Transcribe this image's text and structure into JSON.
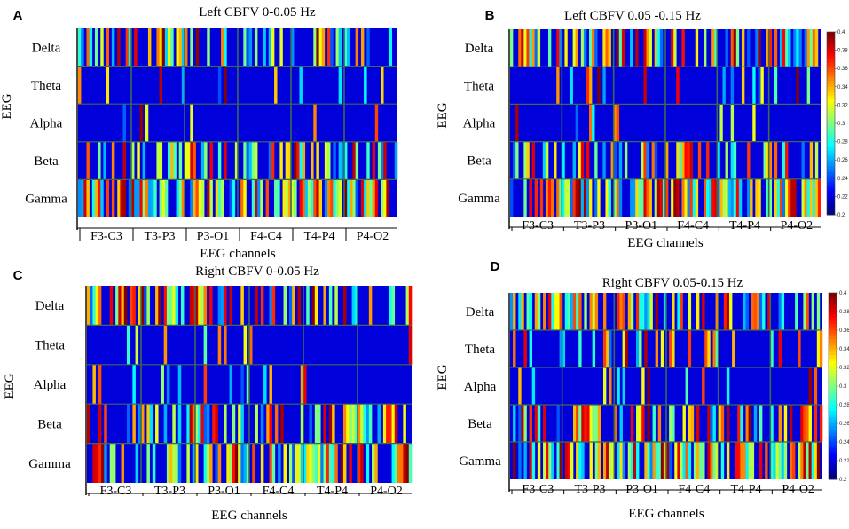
{
  "colors": {
    "colormap": "jet",
    "separator": "#3d6b4f",
    "axis": "#000000"
  },
  "chart_data": [
    {
      "type": "heatmap",
      "panel": "A",
      "title": "Left CBFV 0-0.05 Hz",
      "ylabel": "EEG",
      "xlabel": "EEG channels",
      "rows": [
        "Delta",
        "Theta",
        "Alpha",
        "Beta",
        "Gamma"
      ],
      "channel_groups": [
        "F3-C3",
        "T3-P3",
        "P3-O1",
        "F4-C4",
        "T4-P4",
        "P4-O2"
      ],
      "columns_per_group": 19,
      "seed": 11,
      "row_density": [
        0.45,
        0.12,
        0.08,
        0.45,
        0.7
      ],
      "colorbar": false
    },
    {
      "type": "heatmap",
      "panel": "B",
      "title": "Left  CBFV 0.05 -0.15 Hz",
      "ylabel": "EEG",
      "xlabel": "EEG channels",
      "rows": [
        "Delta",
        "Theta",
        "Alpha",
        "Beta",
        "Gamma"
      ],
      "channel_groups": [
        "F3-C3",
        "T3-P3",
        "P3-O1",
        "F4-C4",
        "T4-P4",
        "P4-O2"
      ],
      "columns_per_group": 19,
      "seed": 23,
      "row_density": [
        0.45,
        0.12,
        0.08,
        0.45,
        0.7
      ],
      "colorbar": true,
      "colorbar_ticks": [
        "0.4",
        "0.38",
        "0.36",
        "0.34",
        "0.32",
        "0.3",
        "0.28",
        "0.26",
        "0.24",
        "0.22",
        "0.2"
      ]
    },
    {
      "type": "heatmap",
      "panel": "C",
      "title": "Right CBFV 0-0.05 Hz",
      "ylabel": "EEG",
      "xlabel": "EEG channels",
      "rows": [
        "Delta",
        "Theta",
        "Alpha",
        "Beta",
        "Gamma"
      ],
      "channel_groups": [
        "F3-C3",
        "T3-P3",
        "P3-O1",
        "F4-C4",
        "T4-P4",
        "P4-O2"
      ],
      "columns_per_group": 19,
      "seed": 37,
      "row_density": [
        0.4,
        0.12,
        0.08,
        0.5,
        0.65
      ],
      "colorbar": false
    },
    {
      "type": "heatmap",
      "panel": "D",
      "title": "Right CBFV 0.05-0.15 Hz",
      "ylabel": "EEG",
      "xlabel": "EEG channels",
      "rows": [
        "Delta",
        "Theta",
        "Alpha",
        "Beta",
        "Gamma"
      ],
      "channel_groups": [
        "F3-C3",
        "T3-P3",
        "P3-O1",
        "F4-C4",
        "T4-P4",
        "P4-O2"
      ],
      "columns_per_group": 19,
      "seed": 53,
      "row_density": [
        0.5,
        0.25,
        0.12,
        0.5,
        0.65
      ],
      "colorbar": true,
      "colorbar_ticks": [
        "0.4",
        "0.38",
        "0.36",
        "0.34",
        "0.32",
        "0.3",
        "0.28",
        "0.26",
        "0.24",
        "0.22",
        "0.2"
      ]
    }
  ]
}
